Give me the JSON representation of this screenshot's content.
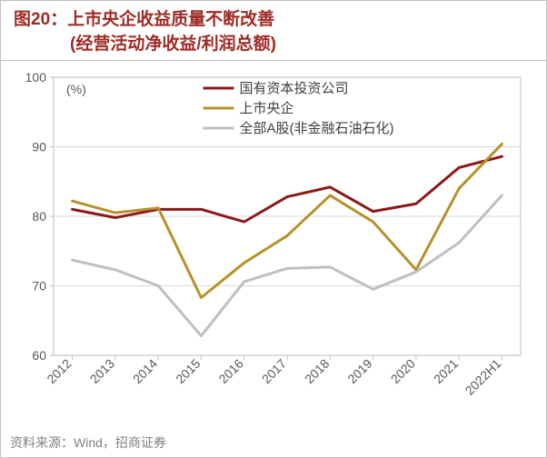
{
  "title": {
    "prefix": "图20：",
    "line1": "上市央企收益质量不断改善",
    "line2": "(经营活动净收益/利润总额)",
    "color": "#9e2b25",
    "fontsize": 19
  },
  "chart": {
    "type": "line",
    "unit_label": "(%)",
    "background_color": "#ffffff",
    "plot_border_color": "#bfbfbf",
    "grid_color": "#d9d9d9",
    "axis_text_color": "#595959",
    "ylim": [
      60,
      100
    ],
    "ytick_step": 10,
    "yticks": [
      60,
      70,
      80,
      90,
      100
    ],
    "categories": [
      "2012",
      "2013",
      "2014",
      "2015",
      "2016",
      "2017",
      "2018",
      "2019",
      "2020",
      "2021",
      "2022H1"
    ],
    "x_label_rotation": -45,
    "series": [
      {
        "name": "国有资本投资公司",
        "color": "#8b1a1a",
        "line_width": 3,
        "values": [
          81.0,
          79.8,
          81.0,
          81.0,
          79.2,
          82.8,
          84.2,
          80.7,
          81.8,
          87.0,
          88.6
        ]
      },
      {
        "name": "上市央企",
        "color": "#b6922a",
        "line_width": 3,
        "values": [
          82.2,
          80.5,
          81.2,
          68.3,
          73.3,
          77.2,
          83.0,
          79.2,
          72.3,
          84.0,
          90.4
        ]
      },
      {
        "name": "全部A股(非金融石油石化)",
        "color": "#bfbfbf",
        "line_width": 3,
        "values": [
          73.7,
          72.3,
          70.0,
          62.8,
          70.6,
          72.5,
          72.7,
          69.5,
          72.0,
          76.2,
          83.0
        ]
      }
    ],
    "legend": {
      "position": "top-center",
      "fontsize": 15
    },
    "axis_fontsize": 14
  },
  "source": {
    "label": "资料来源：",
    "value": "Wind，招商证券",
    "color": "#808080",
    "fontsize": 14
  }
}
